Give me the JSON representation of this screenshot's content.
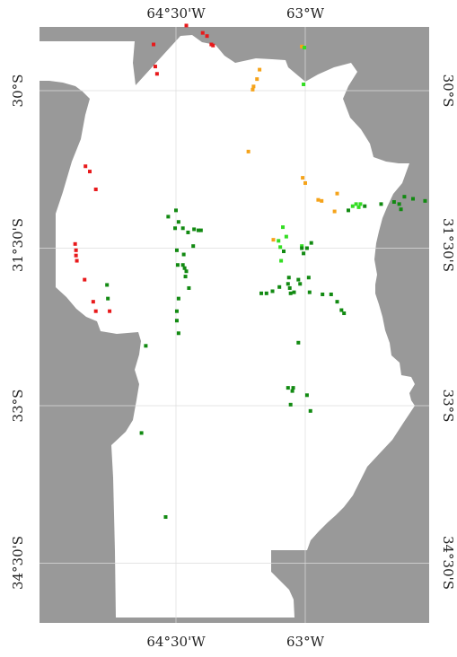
{
  "labels": {
    "lon_top": [
      "64°30'W",
      "63°W"
    ],
    "lon_bottom": [
      "64°30'W",
      "63°W"
    ],
    "lat_left": [
      "30°S",
      "31°30'S",
      "33°S",
      "34°30'S"
    ],
    "lat_right": [
      "30°S",
      "31°30'S",
      "33°S",
      "34°30'S"
    ]
  },
  "colors": {
    "background": "#999999",
    "land": "#ffffff",
    "grid": "#dddddd",
    "red": "#e8191b",
    "orange": "#f5a31a",
    "light_green": "#33dd22",
    "dark_green": "#128a12"
  },
  "points": {
    "red": [
      [
        -64.38,
        29.38
      ],
      [
        -64.19,
        29.45
      ],
      [
        -64.14,
        29.48
      ],
      [
        -64.09,
        29.56
      ],
      [
        -64.07,
        29.57
      ],
      [
        -64.76,
        29.56
      ],
      [
        -64.74,
        29.77
      ],
      [
        -64.72,
        29.84
      ],
      [
        -65.55,
        30.72
      ],
      [
        -65.5,
        30.77
      ],
      [
        -65.43,
        30.94
      ],
      [
        -65.67,
        31.46
      ],
      [
        -65.66,
        31.52
      ],
      [
        -65.66,
        31.57
      ],
      [
        -65.65,
        31.62
      ],
      [
        -65.56,
        31.8
      ],
      [
        -65.46,
        32.01
      ],
      [
        -65.43,
        32.1
      ],
      [
        -65.27,
        32.1
      ]
    ],
    "orange": [
      [
        -63.04,
        29.58
      ],
      [
        -63.53,
        29.8
      ],
      [
        -63.56,
        29.89
      ],
      [
        -63.6,
        29.96
      ],
      [
        -63.61,
        29.99
      ],
      [
        -63.66,
        30.58
      ],
      [
        -63.03,
        30.83
      ],
      [
        -63.0,
        30.88
      ],
      [
        -62.85,
        31.04
      ],
      [
        -62.81,
        31.05
      ],
      [
        -62.63,
        30.98
      ],
      [
        -62.66,
        31.15
      ],
      [
        -63.37,
        31.42
      ]
    ],
    "light_green": [
      [
        -63.01,
        29.59
      ],
      [
        -63.02,
        29.94
      ],
      [
        -62.41,
        31.08
      ],
      [
        -62.38,
        31.11
      ],
      [
        -62.36,
        31.08
      ],
      [
        -63.26,
        31.3
      ],
      [
        -63.22,
        31.39
      ],
      [
        -63.31,
        31.43
      ],
      [
        -63.29,
        31.49
      ],
      [
        -63.28,
        31.62
      ],
      [
        -63.04,
        31.48
      ],
      [
        -62.45,
        31.1
      ]
    ],
    "dark_green": [
      [
        -62.31,
        31.1
      ],
      [
        -62.12,
        31.08
      ],
      [
        -61.97,
        31.06
      ],
      [
        -61.91,
        31.08
      ],
      [
        -61.89,
        31.13
      ],
      [
        -61.85,
        31.01
      ],
      [
        -61.75,
        31.03
      ],
      [
        -61.61,
        31.05
      ],
      [
        -62.5,
        31.14
      ],
      [
        -64.59,
        31.2
      ],
      [
        -64.5,
        31.14
      ],
      [
        -64.47,
        31.25
      ],
      [
        -64.51,
        31.31
      ],
      [
        -64.42,
        31.31
      ],
      [
        -64.36,
        31.35
      ],
      [
        -64.29,
        31.32
      ],
      [
        -64.24,
        31.33
      ],
      [
        -64.21,
        31.33
      ],
      [
        -64.3,
        31.48
      ],
      [
        -64.49,
        31.52
      ],
      [
        -64.41,
        31.56
      ],
      [
        -64.48,
        31.66
      ],
      [
        -64.42,
        31.66
      ],
      [
        -64.4,
        31.69
      ],
      [
        -64.38,
        31.72
      ],
      [
        -64.39,
        31.77
      ],
      [
        -64.35,
        31.88
      ],
      [
        -64.47,
        31.98
      ],
      [
        -64.49,
        32.1
      ],
      [
        -64.49,
        32.19
      ],
      [
        -64.47,
        32.31
      ],
      [
        -63.04,
        31.5
      ],
      [
        -63.02,
        31.55
      ],
      [
        -62.98,
        31.5
      ],
      [
        -63.25,
        31.53
      ],
      [
        -63.19,
        31.78
      ],
      [
        -63.08,
        31.8
      ],
      [
        -63.06,
        31.84
      ],
      [
        -63.13,
        31.92
      ],
      [
        -63.17,
        31.93
      ],
      [
        -63.2,
        31.84
      ],
      [
        -63.3,
        31.87
      ],
      [
        -63.38,
        31.91
      ],
      [
        -63.45,
        31.93
      ],
      [
        -63.51,
        31.93
      ],
      [
        -62.95,
        31.92
      ],
      [
        -62.96,
        31.78
      ],
      [
        -62.8,
        31.94
      ],
      [
        -62.7,
        31.94
      ],
      [
        -62.63,
        32.01
      ],
      [
        -62.58,
        32.09
      ],
      [
        -62.55,
        32.12
      ],
      [
        -63.18,
        31.88
      ],
      [
        -62.93,
        31.45
      ],
      [
        -65.3,
        31.85
      ],
      [
        -65.29,
        31.98
      ],
      [
        -64.85,
        32.43
      ],
      [
        -63.08,
        32.4
      ],
      [
        -62.98,
        32.9
      ],
      [
        -63.2,
        32.83
      ],
      [
        -63.14,
        32.83
      ],
      [
        -63.15,
        32.86
      ],
      [
        -63.17,
        32.99
      ],
      [
        -62.94,
        33.05
      ],
      [
        -64.9,
        33.26
      ],
      [
        -64.62,
        34.06
      ]
    ]
  }
}
